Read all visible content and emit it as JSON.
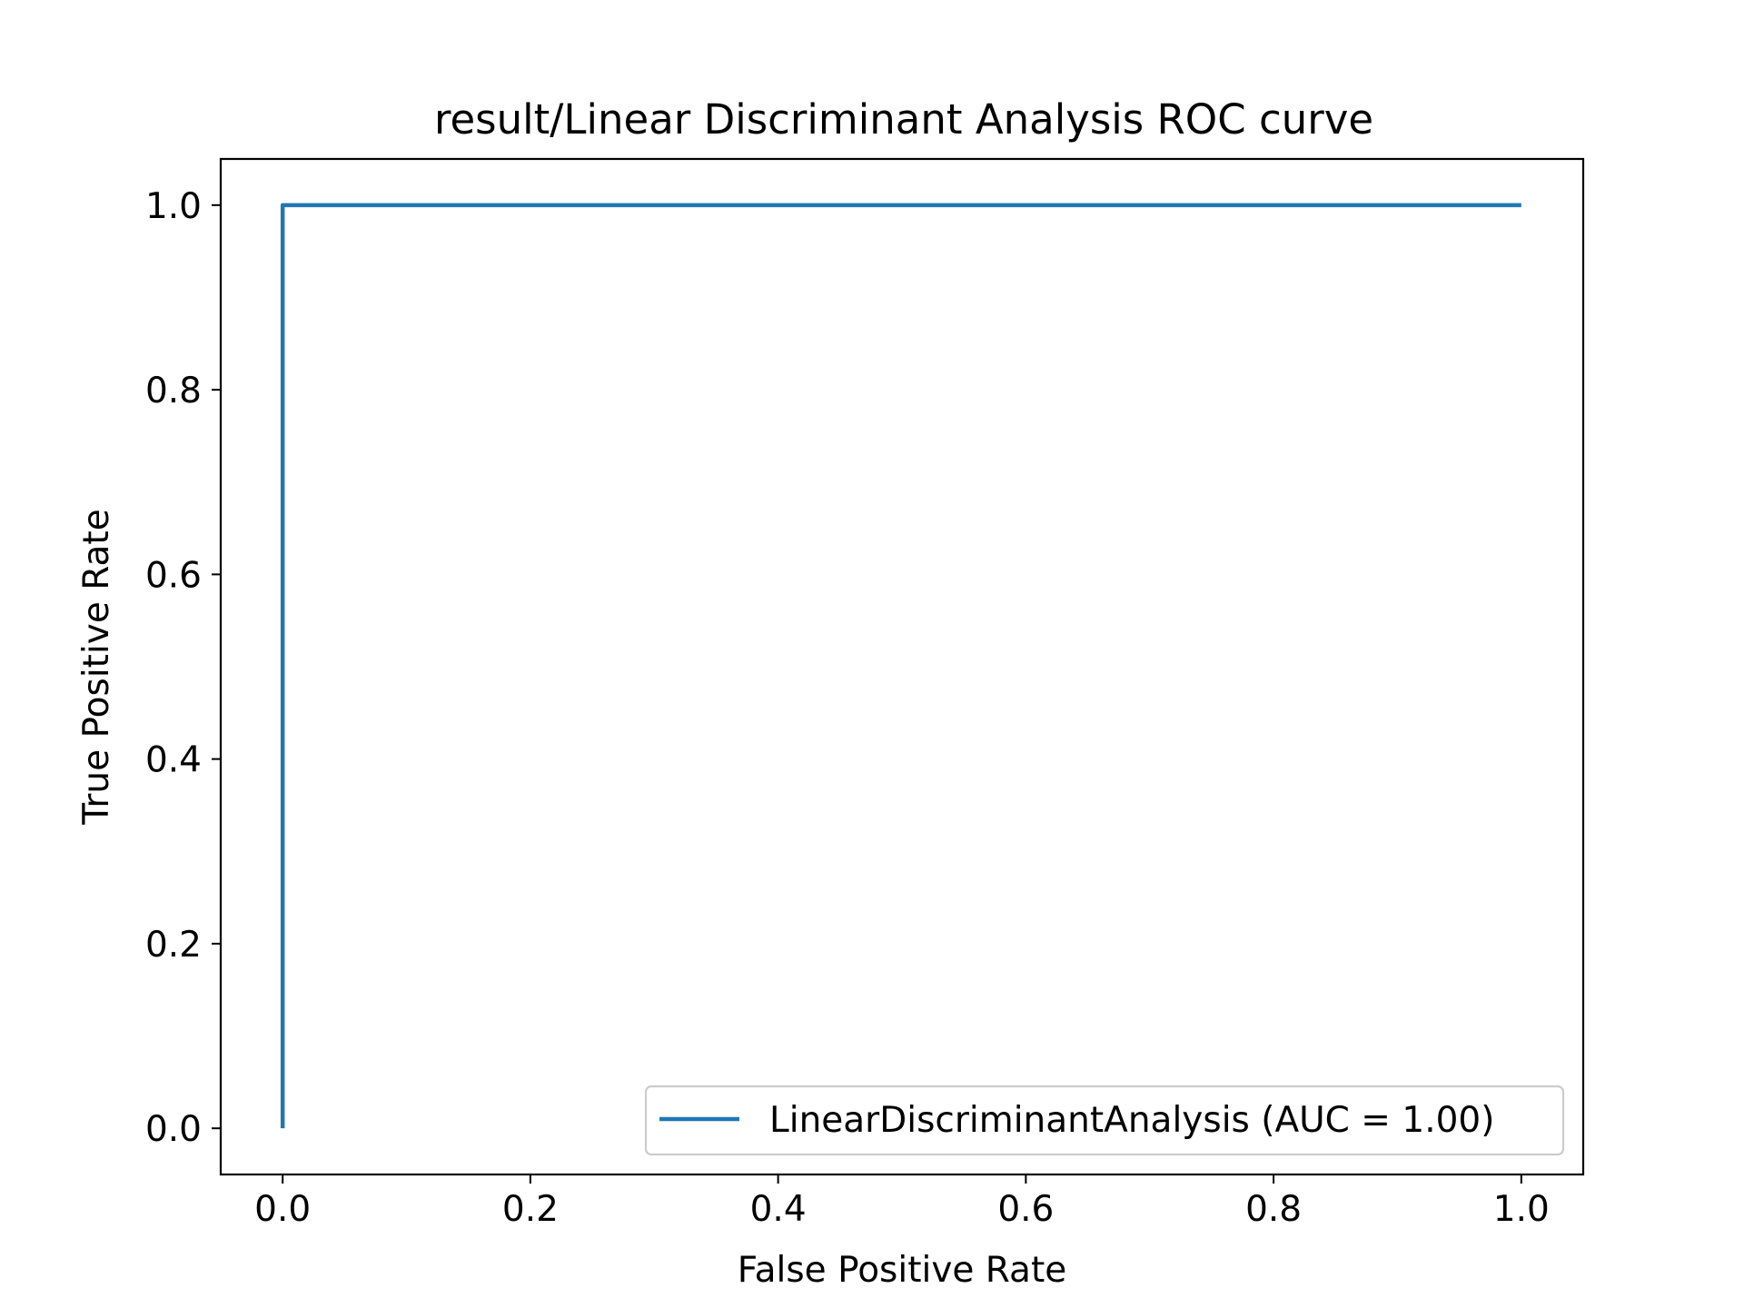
{
  "chart_data": {
    "type": "line",
    "title": "result/Linear Discriminant Analysis ROC curve",
    "xlabel": "False Positive Rate",
    "ylabel": "True Positive Rate",
    "xlim": [
      -0.05,
      1.05
    ],
    "ylim": [
      -0.05,
      1.05
    ],
    "xticks": [
      0.0,
      0.2,
      0.4,
      0.6,
      0.8,
      1.0
    ],
    "yticks": [
      0.0,
      0.2,
      0.4,
      0.6,
      0.8,
      1.0
    ],
    "xtick_labels": [
      "0.0",
      "0.2",
      "0.4",
      "0.6",
      "0.8",
      "1.0"
    ],
    "ytick_labels": [
      "0.0",
      "0.2",
      "0.4",
      "0.6",
      "0.8",
      "1.0"
    ],
    "grid": false,
    "legend_position": "lower-right",
    "series": [
      {
        "name": "LinearDiscriminantAnalysis (AUC = 1.00)",
        "color": "#1f77b4",
        "x": [
          0.0,
          0.0,
          0.0,
          1.0
        ],
        "y": [
          0.0,
          0.99,
          1.0,
          1.0
        ]
      }
    ]
  }
}
